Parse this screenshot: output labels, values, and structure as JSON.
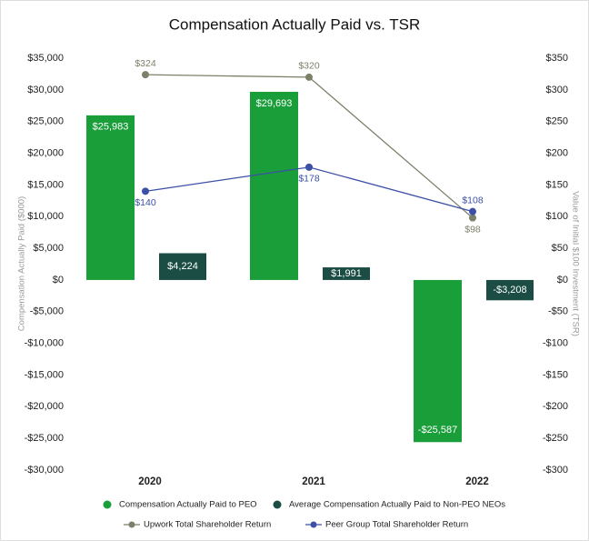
{
  "chart_data": {
    "type": "bar",
    "title": "Compensation Actually Paid vs. TSR",
    "y_label": "Compensation Actually Paid ($000)",
    "y2_label": "Value of Initial $100 Investment (TSR)",
    "categories": [
      "2020",
      "2021",
      "2022"
    ],
    "series": [
      {
        "name": "Compensation Actually Paid to PEO",
        "type": "bar",
        "color": "#1a9e3a",
        "values": [
          25983,
          29693,
          -25587
        ],
        "value_labels": [
          "$25,983",
          "$29,693",
          "-$25,587"
        ]
      },
      {
        "name": "Average Compensation Actually Paid to Non-PEO NEOs",
        "type": "bar",
        "color": "#1b4d45",
        "values": [
          4224,
          1991,
          -3208
        ],
        "value_labels": [
          "$4,224",
          "$1,991",
          "-$3,208"
        ]
      },
      {
        "name": "Upwork Total Shareholder Return",
        "type": "line",
        "axis": "y2",
        "color": "#7b8169",
        "values": [
          324,
          320,
          98
        ],
        "value_labels": [
          "$324",
          "$320",
          "$98"
        ]
      },
      {
        "name": "Peer Group Total Shareholder Return",
        "type": "line",
        "axis": "y2",
        "color": "#3c50a6",
        "values": [
          140,
          178,
          108
        ],
        "value_labels": [
          "$140",
          "$178",
          "$108"
        ]
      }
    ],
    "ylim": [
      -30000,
      35000
    ],
    "yticks": [
      {
        "value": -30000,
        "label": "-$30,000"
      },
      {
        "value": -25000,
        "label": "-$25,000"
      },
      {
        "value": -20000,
        "label": "-$20,000"
      },
      {
        "value": -15000,
        "label": "-$15,000"
      },
      {
        "value": -10000,
        "label": "-$10,000"
      },
      {
        "value": -5000,
        "label": "-$5,000"
      },
      {
        "value": 0,
        "label": "$0"
      },
      {
        "value": 5000,
        "label": "$5,000"
      },
      {
        "value": 10000,
        "label": "$10,000"
      },
      {
        "value": 15000,
        "label": "$15,000"
      },
      {
        "value": 20000,
        "label": "$20,000"
      },
      {
        "value": 25000,
        "label": "$25,000"
      },
      {
        "value": 30000,
        "label": "$30,000"
      },
      {
        "value": 35000,
        "label": "$35,000"
      }
    ],
    "y2lim": [
      -300,
      350
    ],
    "y2ticks": [
      {
        "value": -300,
        "label": "-$300"
      },
      {
        "value": -250,
        "label": "-$250"
      },
      {
        "value": -200,
        "label": "-$200"
      },
      {
        "value": -150,
        "label": "-$150"
      },
      {
        "value": -100,
        "label": "-$100"
      },
      {
        "value": -50,
        "label": "-$50"
      },
      {
        "value": 0,
        "label": "$0"
      },
      {
        "value": 50,
        "label": "$50"
      },
      {
        "value": 100,
        "label": "$100"
      },
      {
        "value": 150,
        "label": "$150"
      },
      {
        "value": 200,
        "label": "$200"
      },
      {
        "value": 250,
        "label": "$250"
      },
      {
        "value": 300,
        "label": "$300"
      },
      {
        "value": 350,
        "label": "$350"
      }
    ],
    "grid": false
  }
}
